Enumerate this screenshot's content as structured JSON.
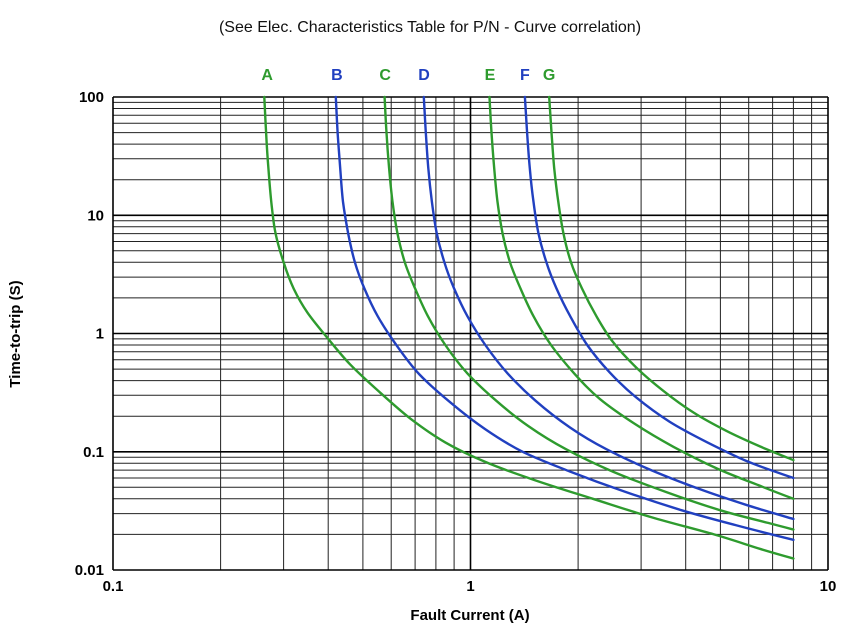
{
  "title": "(See Elec. Characteristics Table for P/N - Curve correlation)",
  "colors": {
    "green": "#2e9b2e",
    "blue": "#2140c0",
    "grid_minor": "#222222",
    "grid_major": "#000000",
    "text": "#000000"
  },
  "chart_data": {
    "type": "line",
    "title": "(See Elec. Characteristics Table for P/N - Curve correlation)",
    "xlabel": "Fault Current (A)",
    "ylabel": "Time-to-trip (S)",
    "xscale": "log",
    "yscale": "log",
    "xlim": [
      0.1,
      10
    ],
    "ylim": [
      0.01,
      100
    ],
    "grid": true,
    "x_ticks": [
      {
        "value": 0.1,
        "label": "0.1"
      },
      {
        "value": 1,
        "label": "1"
      },
      {
        "value": 10,
        "label": "10"
      }
    ],
    "y_ticks": [
      {
        "value": 100,
        "label": "100"
      },
      {
        "value": 10,
        "label": "10"
      },
      {
        "value": 1,
        "label": "1"
      },
      {
        "value": 0.1,
        "label": "0.1"
      },
      {
        "value": 0.01,
        "label": "0.01"
      }
    ],
    "curve_labels": [
      {
        "text": "A",
        "x": 0.27,
        "color": "#2e9b2e"
      },
      {
        "text": "B",
        "x": 0.423,
        "color": "#2140c0"
      },
      {
        "text": "C",
        "x": 0.577,
        "color": "#2e9b2e"
      },
      {
        "text": "D",
        "x": 0.741,
        "color": "#2140c0"
      },
      {
        "text": "E",
        "x": 1.134,
        "color": "#2e9b2e"
      },
      {
        "text": "F",
        "x": 1.42,
        "color": "#2140c0"
      },
      {
        "text": "G",
        "x": 1.659,
        "color": "#2e9b2e"
      }
    ],
    "series": [
      {
        "name": "A",
        "color": "#2e9b2e",
        "points": [
          [
            0.265,
            100
          ],
          [
            0.268,
            50
          ],
          [
            0.272,
            25
          ],
          [
            0.278,
            12
          ],
          [
            0.285,
            7
          ],
          [
            0.3,
            4
          ],
          [
            0.32,
            2.4
          ],
          [
            0.35,
            1.5
          ],
          [
            0.4,
            0.9
          ],
          [
            0.46,
            0.55
          ],
          [
            0.55,
            0.33
          ],
          [
            0.68,
            0.19
          ],
          [
            0.85,
            0.12
          ],
          [
            1.1,
            0.082
          ],
          [
            1.5,
            0.058
          ],
          [
            2.2,
            0.04
          ],
          [
            3.2,
            0.028
          ],
          [
            4.8,
            0.02
          ],
          [
            6.5,
            0.015
          ],
          [
            8,
            0.0125
          ]
        ]
      },
      {
        "name": "B",
        "color": "#2140c0",
        "points": [
          [
            0.42,
            100
          ],
          [
            0.425,
            50
          ],
          [
            0.432,
            25
          ],
          [
            0.44,
            13
          ],
          [
            0.455,
            7
          ],
          [
            0.475,
            4
          ],
          [
            0.505,
            2.4
          ],
          [
            0.55,
            1.4
          ],
          [
            0.62,
            0.8
          ],
          [
            0.72,
            0.45
          ],
          [
            0.88,
            0.26
          ],
          [
            1.1,
            0.155
          ],
          [
            1.4,
            0.1
          ],
          [
            1.9,
            0.068
          ],
          [
            2.7,
            0.046
          ],
          [
            3.9,
            0.032
          ],
          [
            5.5,
            0.024
          ],
          [
            8,
            0.018
          ]
        ]
      },
      {
        "name": "C",
        "color": "#2e9b2e",
        "points": [
          [
            0.575,
            100
          ],
          [
            0.582,
            50
          ],
          [
            0.592,
            25
          ],
          [
            0.605,
            13
          ],
          [
            0.625,
            7
          ],
          [
            0.655,
            4
          ],
          [
            0.7,
            2.4
          ],
          [
            0.76,
            1.4
          ],
          [
            0.85,
            0.8
          ],
          [
            0.98,
            0.46
          ],
          [
            1.18,
            0.27
          ],
          [
            1.45,
            0.165
          ],
          [
            1.85,
            0.105
          ],
          [
            2.5,
            0.068
          ],
          [
            3.5,
            0.046
          ],
          [
            5.0,
            0.032
          ],
          [
            6.8,
            0.025
          ],
          [
            8,
            0.022
          ]
        ]
      },
      {
        "name": "D",
        "color": "#2140c0",
        "points": [
          [
            0.74,
            100
          ],
          [
            0.75,
            50
          ],
          [
            0.762,
            25
          ],
          [
            0.78,
            13
          ],
          [
            0.805,
            7
          ],
          [
            0.845,
            4
          ],
          [
            0.9,
            2.4
          ],
          [
            0.98,
            1.4
          ],
          [
            1.1,
            0.8
          ],
          [
            1.27,
            0.46
          ],
          [
            1.52,
            0.27
          ],
          [
            1.9,
            0.16
          ],
          [
            2.4,
            0.105
          ],
          [
            3.2,
            0.07
          ],
          [
            4.4,
            0.048
          ],
          [
            6.0,
            0.035
          ],
          [
            8,
            0.027
          ]
        ]
      },
      {
        "name": "E",
        "color": "#2e9b2e",
        "points": [
          [
            1.13,
            100
          ],
          [
            1.145,
            50
          ],
          [
            1.165,
            25
          ],
          [
            1.19,
            13
          ],
          [
            1.23,
            7
          ],
          [
            1.29,
            4
          ],
          [
            1.38,
            2.4
          ],
          [
            1.5,
            1.4
          ],
          [
            1.68,
            0.8
          ],
          [
            1.95,
            0.46
          ],
          [
            2.3,
            0.28
          ],
          [
            2.9,
            0.17
          ],
          [
            3.7,
            0.11
          ],
          [
            4.9,
            0.072
          ],
          [
            6.4,
            0.052
          ],
          [
            8,
            0.04
          ]
        ]
      },
      {
        "name": "F",
        "color": "#2140c0",
        "points": [
          [
            1.42,
            100
          ],
          [
            1.44,
            50
          ],
          [
            1.465,
            25
          ],
          [
            1.5,
            13
          ],
          [
            1.55,
            7
          ],
          [
            1.63,
            4
          ],
          [
            1.74,
            2.4
          ],
          [
            1.9,
            1.4
          ],
          [
            2.12,
            0.8
          ],
          [
            2.45,
            0.47
          ],
          [
            2.9,
            0.29
          ],
          [
            3.6,
            0.18
          ],
          [
            4.6,
            0.12
          ],
          [
            6.0,
            0.082
          ],
          [
            8,
            0.06
          ]
        ]
      },
      {
        "name": "G",
        "color": "#2e9b2e",
        "points": [
          [
            1.66,
            100
          ],
          [
            1.685,
            50
          ],
          [
            1.715,
            25
          ],
          [
            1.76,
            13
          ],
          [
            1.82,
            7
          ],
          [
            1.91,
            4
          ],
          [
            2.05,
            2.4
          ],
          [
            2.25,
            1.4
          ],
          [
            2.5,
            0.85
          ],
          [
            2.9,
            0.52
          ],
          [
            3.45,
            0.33
          ],
          [
            4.2,
            0.215
          ],
          [
            5.2,
            0.15
          ],
          [
            6.5,
            0.11
          ],
          [
            8,
            0.085
          ]
        ]
      }
    ]
  }
}
